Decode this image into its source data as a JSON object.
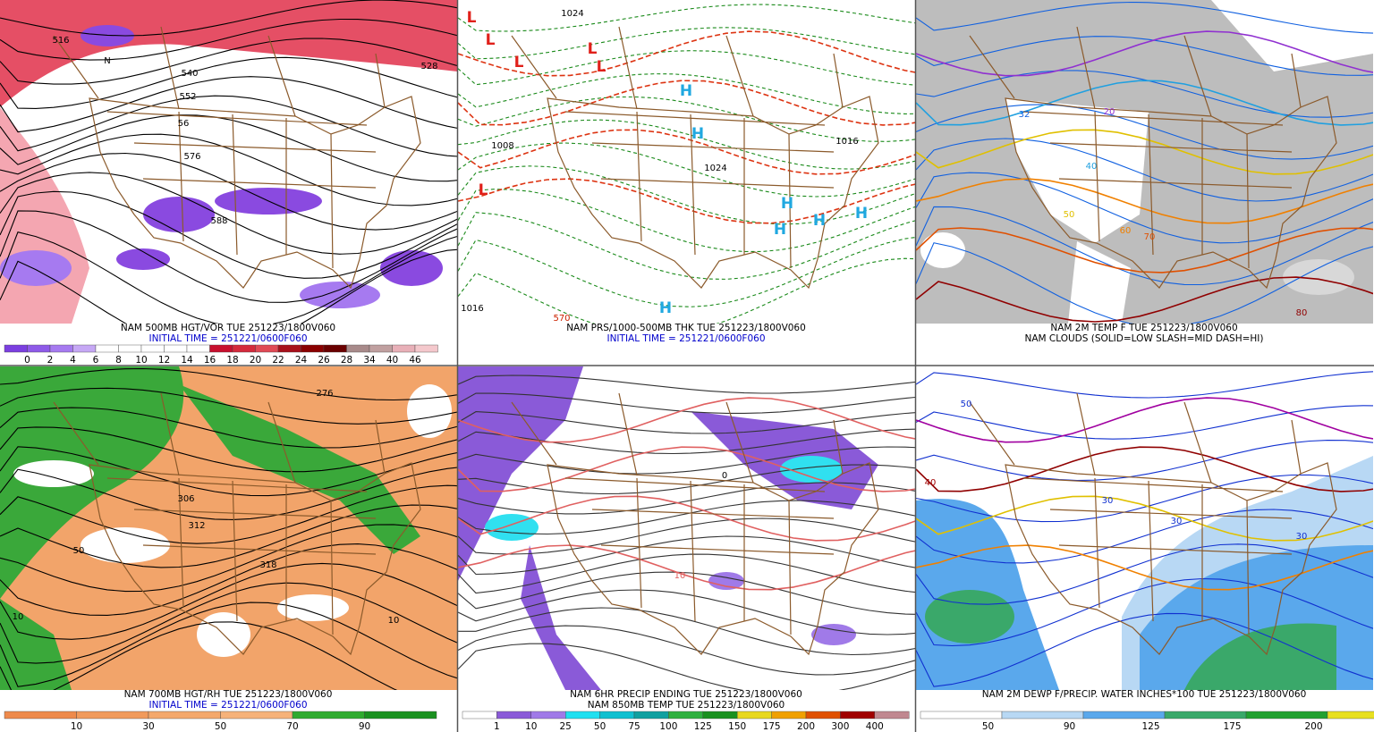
{
  "panels": [
    {
      "captions": [
        {
          "text": "NAM 500MB HGT/VOR TUE 251223/1800V060",
          "color": "#000000"
        },
        {
          "text": "INITIAL TIME = 251221/0600F060",
          "color": "#0000cc"
        }
      ],
      "colorbar": {
        "colors": [
          "#7b3fe0",
          "#8e5ae8",
          "#a67af0",
          "#c6a8f5",
          "#ffffff",
          "#ffffff",
          "#ffffff",
          "#ffffff",
          "#ffffff",
          "#c8102e",
          "#d42a3c",
          "#e04a55",
          "#a8101a",
          "#8a0000",
          "#6a0000",
          "#a88a8a",
          "#c0a0a0",
          "#e8b0b8",
          "#f4c8cc"
        ],
        "labels": [
          "0",
          "2",
          "4",
          "6",
          "8",
          "10",
          "12",
          "14",
          "16",
          "18",
          "20",
          "22",
          "24",
          "26",
          "28",
          "34",
          "40",
          "46"
        ]
      },
      "map_labels": [
        {
          "text": "516",
          "color": "#000000"
        },
        {
          "text": "528",
          "color": "#000000"
        },
        {
          "text": "540",
          "color": "#000000"
        },
        {
          "text": "552",
          "color": "#000000"
        },
        {
          "text": "56",
          "color": "#000000"
        },
        {
          "text": "576",
          "color": "#000000"
        },
        {
          "text": "588",
          "color": "#000000"
        },
        {
          "text": "N",
          "color": "#000000"
        }
      ]
    },
    {
      "captions": [
        {
          "text": "NAM PRS/1000-500MB THK TUE 251223/1800V060",
          "color": "#000000"
        },
        {
          "text": "INITIAL TIME = 251221/0600F060",
          "color": "#0000cc"
        }
      ],
      "map_labels": [
        {
          "text": "L",
          "color": "#e0201a"
        },
        {
          "text": "L",
          "color": "#e0201a"
        },
        {
          "text": "L",
          "color": "#e0201a"
        },
        {
          "text": "L",
          "color": "#e0201a"
        },
        {
          "text": "L",
          "color": "#e0201a"
        },
        {
          "text": "L",
          "color": "#e0201a"
        },
        {
          "text": "H",
          "color": "#20a8e0"
        },
        {
          "text": "H",
          "color": "#20a8e0"
        },
        {
          "text": "H",
          "color": "#20a8e0"
        },
        {
          "text": "H",
          "color": "#20a8e0"
        },
        {
          "text": "H",
          "color": "#20a8e0"
        },
        {
          "text": "H",
          "color": "#20a8e0"
        },
        {
          "text": "H",
          "color": "#20a8e0"
        },
        {
          "text": "1024",
          "color": "#000000"
        },
        {
          "text": "1008",
          "color": "#000000"
        },
        {
          "text": "1016",
          "color": "#000000"
        },
        {
          "text": "1024",
          "color": "#000000"
        },
        {
          "text": "570",
          "color": "#cc2200"
        },
        {
          "text": "1016",
          "color": "#000000"
        }
      ]
    },
    {
      "captions": [
        {
          "text": "NAM 2M TEMP F TUE 251223/1800V060",
          "color": "#000000"
        },
        {
          "text": "NAM CLOUDS (SOLID=LOW SLASH=MID DASH=HI)",
          "color": "#000000"
        }
      ],
      "map_labels": [
        {
          "text": "32",
          "color": "#1060e0"
        },
        {
          "text": "40",
          "color": "#20a0e0"
        },
        {
          "text": "50",
          "color": "#e0c000"
        },
        {
          "text": "60",
          "color": "#f08000"
        },
        {
          "text": "70",
          "color": "#e05000"
        },
        {
          "text": "80",
          "color": "#900000"
        },
        {
          "text": "20",
          "color": "#9030d0"
        }
      ]
    },
    {
      "captions": [
        {
          "text": "NAM 700MB HGT/RH TUE 251223/1800V060",
          "color": "#000000"
        },
        {
          "text": "INITIAL TIME = 251221/0600F060",
          "color": "#0000cc"
        }
      ],
      "colorbar": {
        "colors": [
          "#ee8a4c",
          "#f19a5c",
          "#f4a86c",
          "#f6b27a",
          "#2faa2f",
          "#1a9020"
        ],
        "labels": [
          "10",
          "30",
          "50",
          "70",
          "90"
        ]
      },
      "map_labels": [
        {
          "text": "276",
          "color": "#000000"
        },
        {
          "text": "306",
          "color": "#000000"
        },
        {
          "text": "312",
          "color": "#000000"
        },
        {
          "text": "318",
          "color": "#000000"
        },
        {
          "text": "50",
          "color": "#000000"
        },
        {
          "text": "10",
          "color": "#000000"
        },
        {
          "text": "10",
          "color": "#000000"
        }
      ]
    },
    {
      "captions": [
        {
          "text": "NAM 6HR PRECIP ENDING TUE 251223/1800V060",
          "color": "#000000"
        },
        {
          "text": "NAM 850MB TEMP TUE 251223/1800V060",
          "color": "#000000"
        }
      ],
      "colorbar": {
        "colors": [
          "#ffffff",
          "#8a5ad8",
          "#a07ae8",
          "#20e0f0",
          "#10c0d0",
          "#10a0a0",
          "#30b040",
          "#1a9020",
          "#e8d820",
          "#f0a000",
          "#e05000",
          "#a00000",
          "#c08890"
        ],
        "labels": [
          "1",
          "10",
          "25",
          "50",
          "75",
          "100",
          "125",
          "150",
          "175",
          "200",
          "300",
          "400"
        ]
      },
      "map_labels": [
        {
          "text": "0",
          "color": "#000000"
        },
        {
          "text": "10",
          "color": "#e06060"
        }
      ]
    },
    {
      "captions": [
        {
          "text": "NAM 2M DEWP F/PRECIP. WATER INCHES*100 TUE 251223/1800V060",
          "color": "#000000"
        }
      ],
      "colorbar": {
        "colors": [
          "#ffffff",
          "#b8d8f4",
          "#5aa8ec",
          "#3aa86a",
          "#22a030",
          "#e8e020"
        ],
        "labels": [
          "50",
          "90",
          "125",
          "175",
          "200"
        ]
      },
      "map_labels": [
        {
          "text": "30",
          "color": "#1030d0"
        },
        {
          "text": "30",
          "color": "#1030d0"
        },
        {
          "text": "40",
          "color": "#a00000"
        },
        {
          "text": "50",
          "color": "#1030d0"
        },
        {
          "text": "30",
          "color": "#1030d0"
        }
      ]
    }
  ]
}
